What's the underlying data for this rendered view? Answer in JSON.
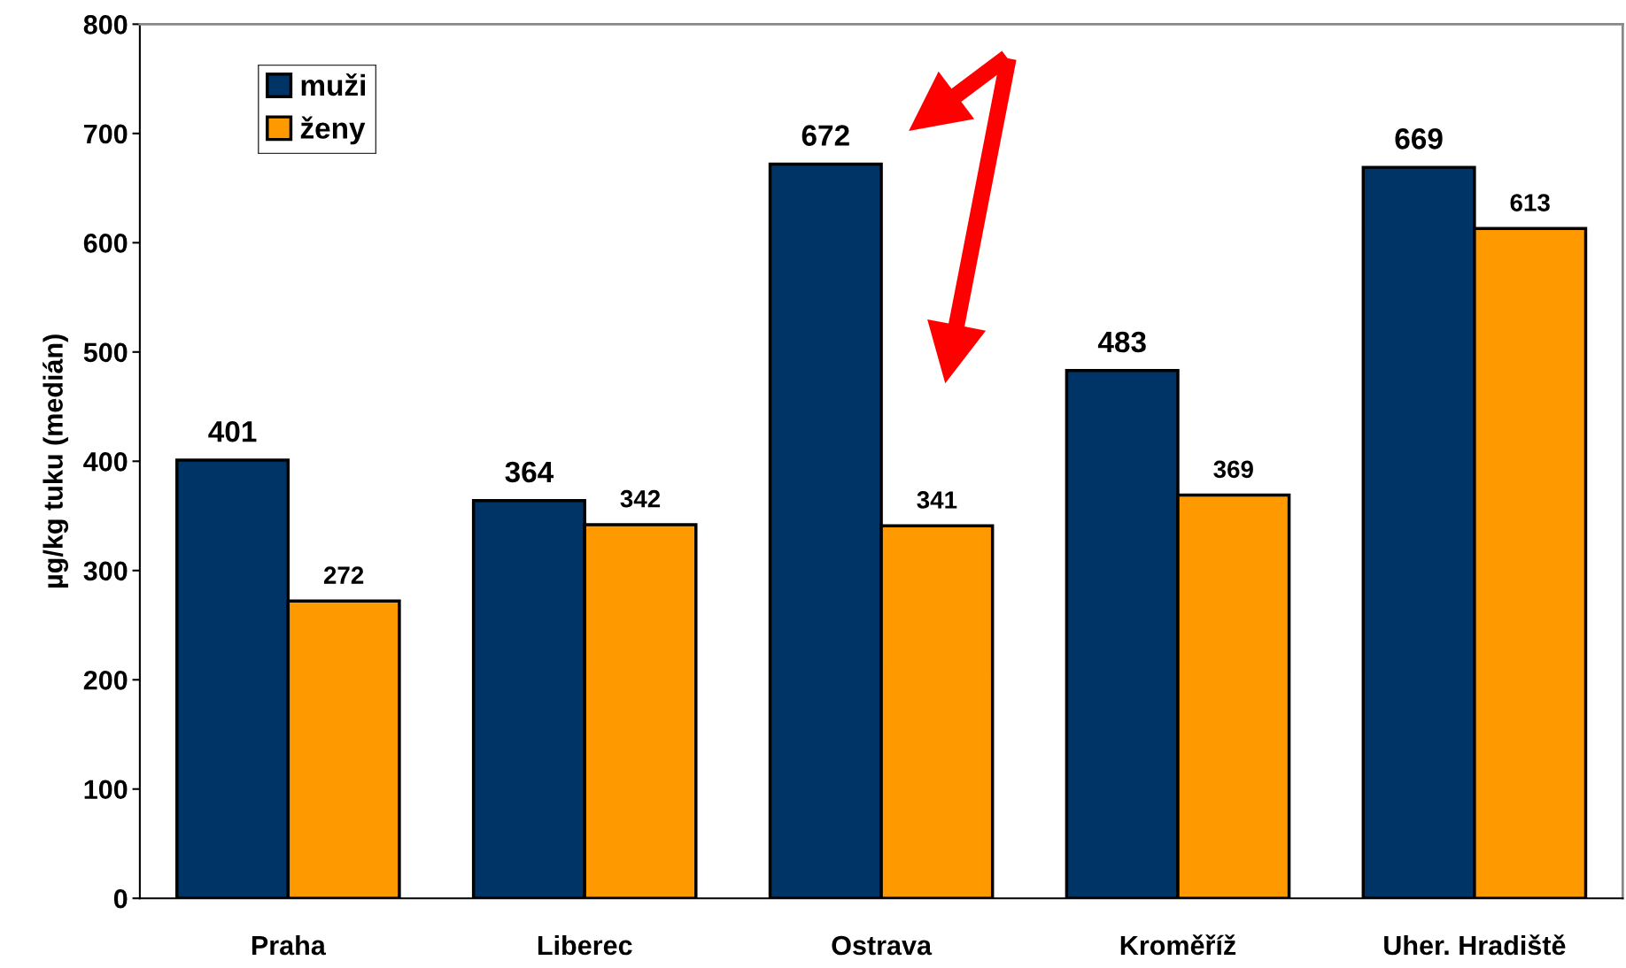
{
  "chart_data": {
    "type": "bar",
    "ylabel": "µg/kg tuku (medián)",
    "categories": [
      "Praha",
      "Liberec",
      "Ostrava",
      "Kroměříž",
      "Uher. Hradiště"
    ],
    "series": [
      {
        "name": "muži",
        "color": "#003366",
        "values": [
          401,
          364,
          672,
          483,
          669
        ]
      },
      {
        "name": "ženy",
        "color": "#ff9900",
        "values": [
          272,
          342,
          341,
          369,
          613
        ]
      }
    ],
    "ylim": [
      0,
      800
    ],
    "yticks": [
      0,
      100,
      200,
      300,
      400,
      500,
      600,
      700,
      800
    ],
    "data_labels": true,
    "legend": "top left",
    "grid": false
  }
}
